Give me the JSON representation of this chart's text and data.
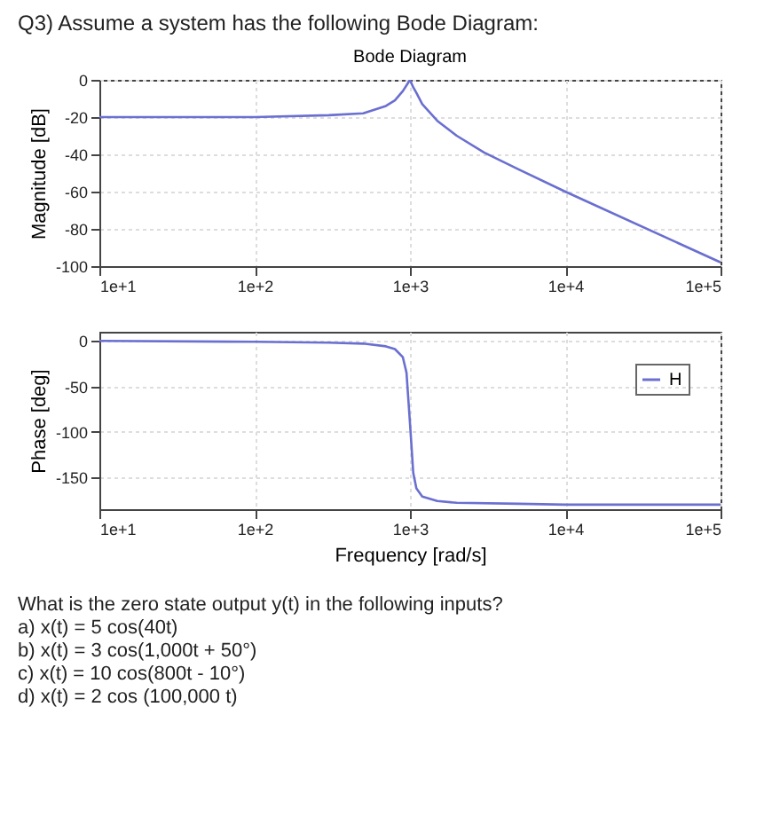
{
  "chart_data": [
    {
      "type": "line",
      "title": "Bode Diagram",
      "ylabel": "Magnitude [dB]",
      "annotations": [
        "Q3) Assume a system has the following Bode Diagram:"
      ],
      "x": [
        10,
        100,
        300,
        500,
        700,
        800,
        900,
        950,
        1000,
        1050,
        1100,
        1200,
        1500,
        2000,
        3000,
        5000,
        10000,
        100000
      ],
      "values": [
        -20,
        -20,
        -19,
        -18,
        -14,
        -11,
        -6,
        -3,
        0,
        -4,
        -7,
        -13,
        -22,
        -30,
        -39,
        -48,
        -60,
        -98
      ],
      "color": "#6a6fd0",
      "xlim": [
        10,
        100000
      ],
      "xticks": [
        {
          "value": 10,
          "label": "1e+1"
        },
        {
          "value": 100,
          "label": "1e+2"
        },
        {
          "value": 1000,
          "label": "1e+3"
        },
        {
          "value": 10000,
          "label": "1e+4"
        },
        {
          "value": 100000,
          "label": "1e+5"
        }
      ],
      "ylim": [
        -100,
        0
      ],
      "yticks": [
        -100,
        -80,
        -60,
        -40,
        -20,
        0
      ],
      "log": "x",
      "grid": true
    },
    {
      "type": "line",
      "xlabel": "Frequency [rad/s]",
      "ylabel": "Phase [deg]",
      "annotations": [
        "What is the zero state output y(t) in the following inputs?",
        "a) x(t) = 5 cos(40t)",
        "b) x(t) = 3 cos(1,000t + 50°)",
        "c) x(t) = 10 cos(800t - 10°)",
        "d) x(t) = 2 cos (100,000 t)"
      ],
      "series": [
        {
          "name": "H",
          "color": "#6a6fd0",
          "x": [
            10,
            100,
            300,
            500,
            700,
            800,
            900,
            950,
            1000,
            1050,
            1100,
            1200,
            1500,
            2000,
            5000,
            10000,
            100000
          ],
          "values": [
            0,
            -1,
            -2,
            -3,
            -6,
            -9,
            -18,
            -35,
            -90,
            -145,
            -162,
            -171,
            -176,
            -178,
            -179,
            -180,
            -180
          ]
        }
      ],
      "xlim": [
        10,
        100000
      ],
      "xticks": [
        {
          "value": 10,
          "label": "1e+1"
        },
        {
          "value": 100,
          "label": "1e+2"
        },
        {
          "value": 1000,
          "label": "1e+3"
        },
        {
          "value": 10000,
          "label": "1e+4"
        },
        {
          "value": 100000,
          "label": "1e+5"
        }
      ],
      "ylim": [
        -185,
        10
      ],
      "yticks": [
        -150,
        -100,
        -50,
        0
      ],
      "log": "x",
      "grid": true,
      "legend": "top right"
    }
  ]
}
